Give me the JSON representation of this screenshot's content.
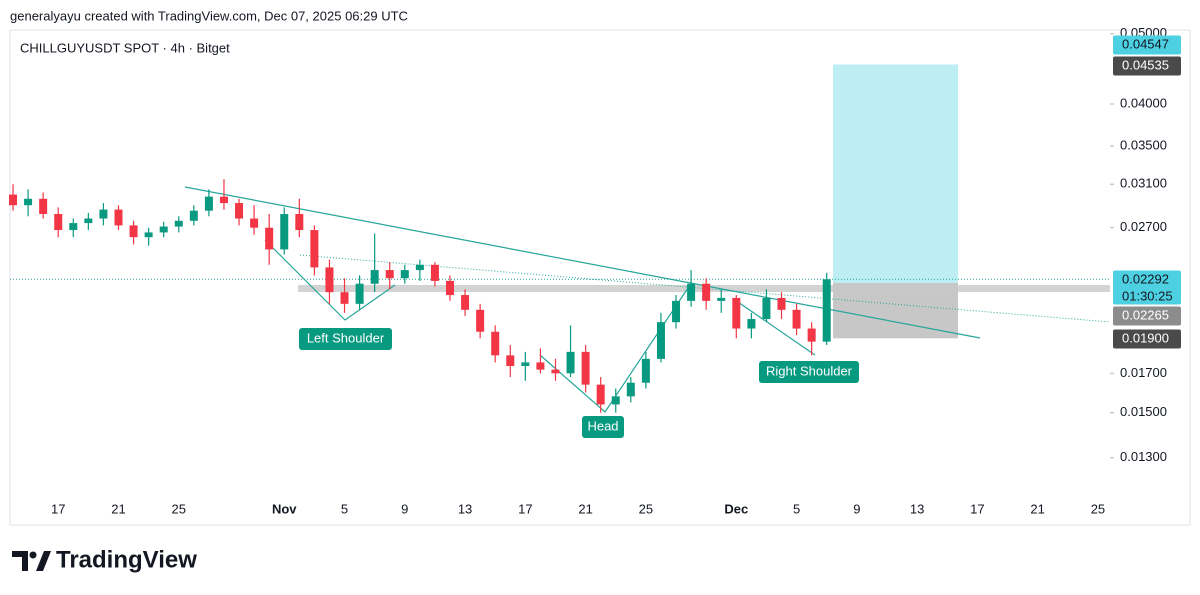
{
  "header": "generalyayu created with TradingView.com, Dec 07, 2025 06:29 UTC",
  "brand": "TradingView",
  "chart_data": {
    "type": "candlestick",
    "title": "CHILLGUYUSDT SPOT · 4h · Bitget",
    "up_color": "#089981",
    "down_color": "#f23645",
    "log_scale": true,
    "ylim": [
      0.0105,
      0.0506
    ],
    "yticks": [
      {
        "value": 0.05,
        "label": "0.05000"
      },
      {
        "value": 0.04,
        "label": "0.04000"
      },
      {
        "value": 0.035,
        "label": "0.03500"
      },
      {
        "value": 0.031,
        "label": "0.03100"
      },
      {
        "value": 0.027,
        "label": "0.02700"
      },
      {
        "value": 0.017,
        "label": "0.01700"
      },
      {
        "value": 0.015,
        "label": "0.01500"
      },
      {
        "value": 0.013,
        "label": "0.01300"
      }
    ],
    "categories": [
      null,
      null,
      null,
      "17",
      null,
      null,
      null,
      "21",
      null,
      null,
      null,
      "25",
      null,
      null,
      null,
      null,
      null,
      null,
      "Nov",
      null,
      null,
      null,
      "5",
      null,
      null,
      null,
      "9",
      null,
      null,
      null,
      "13",
      null,
      null,
      null,
      "17",
      null,
      null,
      null,
      "21",
      null,
      null,
      null,
      "25",
      null,
      null,
      null,
      null,
      null,
      "Dec",
      null,
      null,
      null,
      "5",
      null,
      null,
      null,
      "9",
      null,
      null,
      null,
      "13",
      null,
      null,
      null,
      "17",
      null,
      null,
      null,
      "21",
      null,
      null,
      null,
      "25"
    ],
    "open": [
      0.03,
      0.029,
      0.0296,
      0.0282,
      0.0268,
      0.0274,
      0.0278,
      0.0286,
      0.0272,
      0.0262,
      0.0266,
      0.0271,
      0.0276,
      0.0285,
      0.0298,
      0.0292,
      0.0278,
      0.027,
      0.0252,
      0.0282,
      0.0268,
      0.0238,
      0.022,
      0.0212,
      0.0226,
      0.0236,
      0.023,
      0.0236,
      0.024,
      0.0228,
      0.0218,
      0.0208,
      0.0194,
      0.018,
      0.0174,
      0.0176,
      0.0172,
      0.017,
      0.0182,
      0.0164,
      0.0154,
      0.0158,
      0.0165,
      0.0178,
      0.02,
      0.0214,
      0.0226,
      0.0214,
      0.0216,
      0.0196,
      0.0202,
      0.0216,
      0.0208,
      0.0196,
      0.0188,
      null,
      null,
      null,
      null,
      null,
      null,
      null,
      null,
      null,
      null,
      null,
      null,
      null,
      null,
      null,
      null,
      null,
      null
    ],
    "high": [
      0.031,
      0.0305,
      0.0302,
      0.0288,
      0.0278,
      0.0283,
      0.0292,
      0.029,
      0.0276,
      0.027,
      0.0275,
      0.028,
      0.029,
      0.0305,
      0.0315,
      0.0296,
      0.029,
      0.0282,
      0.0288,
      0.0296,
      0.0272,
      0.0244,
      0.023,
      0.0232,
      0.0265,
      0.0242,
      0.024,
      0.0244,
      0.0242,
      0.0232,
      0.0222,
      0.0212,
      0.0198,
      0.0186,
      0.0182,
      0.0184,
      0.0178,
      0.0198,
      0.0186,
      0.0168,
      0.0162,
      0.0168,
      0.0182,
      0.0206,
      0.0218,
      0.0236,
      0.023,
      0.0222,
      0.0218,
      0.0206,
      0.0222,
      0.022,
      0.0212,
      0.02,
      0.0234,
      null,
      null,
      null,
      null,
      null,
      null,
      null,
      null,
      null,
      null,
      null,
      null,
      null,
      null,
      null,
      null,
      null,
      null
    ],
    "low": [
      0.0285,
      0.028,
      0.0278,
      0.0262,
      0.0262,
      0.0268,
      0.0272,
      0.0268,
      0.0256,
      0.0255,
      0.0262,
      0.0266,
      0.0272,
      0.028,
      0.0286,
      0.0272,
      0.0264,
      0.024,
      0.0248,
      0.0262,
      0.0232,
      0.0212,
      0.0206,
      0.0208,
      0.022,
      0.0222,
      0.0226,
      0.0228,
      0.0224,
      0.0214,
      0.0204,
      0.019,
      0.0176,
      0.0168,
      0.0166,
      0.017,
      0.0166,
      0.0168,
      0.016,
      0.015,
      0.015,
      0.0155,
      0.0162,
      0.0176,
      0.0196,
      0.021,
      0.0208,
      0.0206,
      0.019,
      0.019,
      0.02,
      0.0202,
      0.0192,
      0.018,
      0.0186,
      null,
      null,
      null,
      null,
      null,
      null,
      null,
      null,
      null,
      null,
      null,
      null,
      null,
      null,
      null,
      null,
      null,
      null
    ],
    "close": [
      0.029,
      0.0296,
      0.0282,
      0.0268,
      0.0274,
      0.0278,
      0.0286,
      0.0272,
      0.0262,
      0.0266,
      0.0271,
      0.0276,
      0.0285,
      0.0298,
      0.0292,
      0.0278,
      0.027,
      0.0252,
      0.0282,
      0.0268,
      0.0238,
      0.022,
      0.0212,
      0.0226,
      0.0236,
      0.023,
      0.0236,
      0.024,
      0.0228,
      0.0218,
      0.0208,
      0.0194,
      0.018,
      0.0174,
      0.0176,
      0.0172,
      0.017,
      0.0182,
      0.0164,
      0.0154,
      0.0158,
      0.0165,
      0.0178,
      0.02,
      0.0214,
      0.0226,
      0.0214,
      0.0216,
      0.0196,
      0.0202,
      0.0216,
      0.0208,
      0.0196,
      0.0188,
      0.02292,
      null,
      null,
      null,
      null,
      null,
      null,
      null,
      null,
      null,
      null,
      null,
      null,
      null,
      null,
      null,
      null,
      null,
      null
    ],
    "price_labels": [
      {
        "value": 0.04547,
        "label": "0.04547",
        "color": "#4dd0e1"
      },
      {
        "value": 0.04535,
        "label": "0.04535",
        "color": "#4a4a4a"
      },
      {
        "value": 0.02292,
        "label": "0.02292",
        "color": "#4dd0e1"
      },
      {
        "value": 0.02265,
        "label": "0.02265",
        "color": "#8c8c8c"
      },
      {
        "value": 0.019,
        "label": "0.01900",
        "color": "#4a4a4a"
      }
    ],
    "countdown": "01:30:25",
    "target_color": "#b2ebf2",
    "stop_color": "#bdbdbd",
    "annotations": [
      "Left Shoulder",
      "Head",
      "Right Shoulder"
    ]
  }
}
